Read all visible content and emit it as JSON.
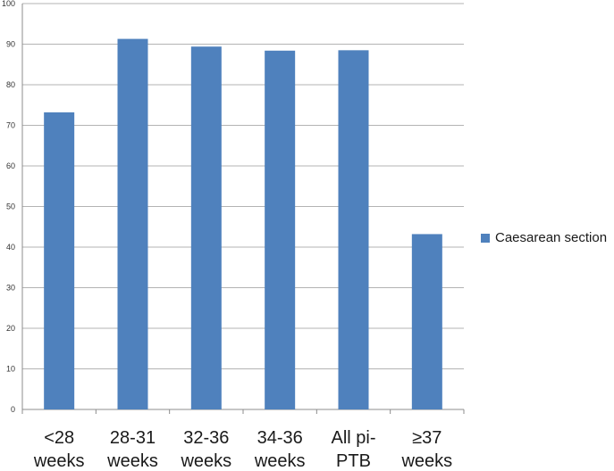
{
  "chart_data": {
    "type": "bar",
    "categories": [
      "<28 weeks",
      "28-31 weeks",
      "32-36 weeks",
      "34-36 weeks",
      "All pi-PTB",
      "≥37 weeks"
    ],
    "category_lines": [
      [
        "<28",
        "weeks"
      ],
      [
        "28-31",
        "weeks"
      ],
      [
        "32-36",
        "weeks"
      ],
      [
        "34-36",
        "weeks"
      ],
      [
        "All pi-",
        "PTB"
      ],
      [
        "≥37",
        "weeks"
      ]
    ],
    "series": [
      {
        "name": "Caesarean section",
        "values": [
          73.2,
          91.3,
          89.4,
          88.4,
          88.5,
          43.2
        ],
        "color": "#4f81bd"
      }
    ],
    "ylim": [
      0,
      100
    ],
    "yticks": [
      "0",
      "10",
      "20",
      "30",
      "40",
      "50",
      "60",
      "70",
      "80",
      "90",
      "100"
    ],
    "grid": true,
    "legend_position": "right",
    "title": "",
    "xlabel": "",
    "ylabel": ""
  }
}
